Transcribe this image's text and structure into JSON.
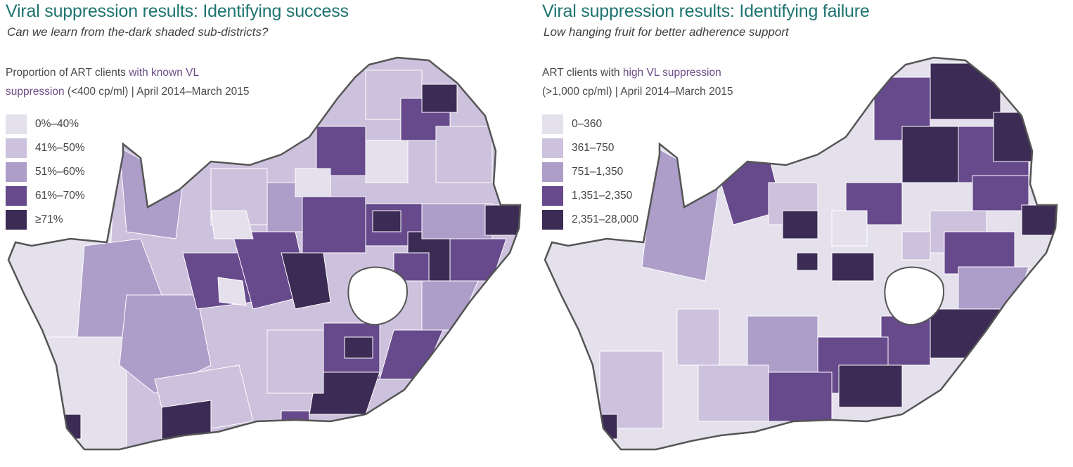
{
  "maps": [
    {
      "title": "Viral suppression results: Identifying success",
      "subtitle": "Can we learn from the-dark shaded sub-districts?",
      "legend_title": {
        "part1": "Proportion of ART clients ",
        "highlight1": "with known VL",
        "highlight2": "suppression",
        "part2": " (<400 cp/ml) | April 2014–March 2015"
      },
      "legend": [
        {
          "label": "0%–40%",
          "color": "#e4e0ec"
        },
        {
          "label": "41%–50%",
          "color": "#cdc2dd"
        },
        {
          "label": "51%–60%",
          "color": "#ad9dc9"
        },
        {
          "label": "61%–70%",
          "color": "#674a8c"
        },
        {
          "label": "≥71%",
          "color": "#3c2c55"
        }
      ]
    },
    {
      "title": "Viral suppression results: Identifying failure",
      "subtitle": "Low hanging fruit for better adherence support",
      "legend_title": {
        "part1": "ART clients with ",
        "highlight1": "high VL suppression",
        "highlight2": "",
        "part2": "(>1,000 cp/ml) | April 2014–March 2015"
      },
      "legend": [
        {
          "label": "0–360",
          "color": "#e4e0ec"
        },
        {
          "label": "361–750",
          "color": "#cdc2dd"
        },
        {
          "label": "751–1,350",
          "color": "#ad9dc9"
        },
        {
          "label": "1,351–2,350",
          "color": "#674a8c"
        },
        {
          "label": "2,351–28,000",
          "color": "#3c2c55"
        }
      ]
    }
  ]
}
